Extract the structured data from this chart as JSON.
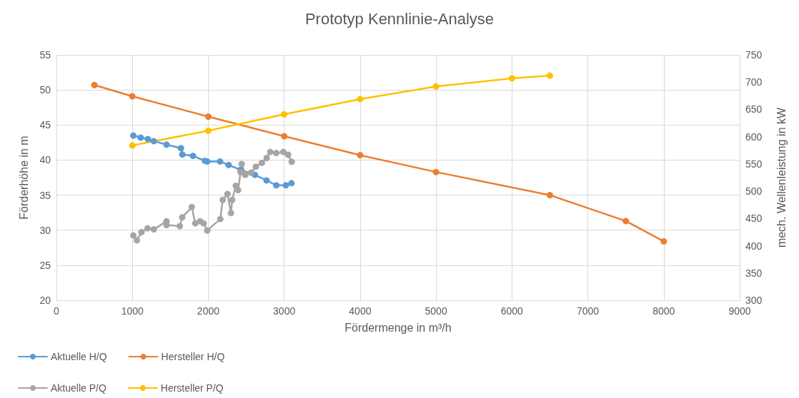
{
  "chart_data": {
    "type": "line",
    "title": "Prototyp Kennlinie-Analyse",
    "xlabel": "Fördermenge in m³/h",
    "ylabel": "Förderhöhe in m",
    "y2label": "mech. Wellenleistung in kW",
    "xlim": [
      0,
      9000
    ],
    "xticks": [
      0,
      1000,
      2000,
      3000,
      4000,
      5000,
      6000,
      7000,
      8000,
      9000
    ],
    "ylim": [
      20,
      55
    ],
    "yticks": [
      20,
      25,
      30,
      35,
      40,
      45,
      50,
      55
    ],
    "y2lim": [
      300,
      750
    ],
    "y2ticks": [
      300,
      350,
      400,
      450,
      500,
      550,
      600,
      650,
      700,
      750
    ],
    "grid": true,
    "legend": "bottom left",
    "marker": "circle",
    "line_style": "solid",
    "series": [
      {
        "name": "Aktuelle H/Q",
        "color": "#5b9bd5",
        "x": [
          1013,
          1110,
          1204,
          1282,
          1450,
          1640,
          1658,
          1798,
          1955,
          1986,
          2155,
          2268,
          2425,
          2614,
          2767,
          2896,
          3021,
          3096
        ],
        "values": [
          43.5,
          43.2,
          43.0,
          42.7,
          42.2,
          41.7,
          40.8,
          40.6,
          39.9,
          39.8,
          39.8,
          39.3,
          38.6,
          37.9,
          37.1,
          36.4,
          36.4,
          36.7
        ]
      },
      {
        "name": "Hersteller H/Q",
        "color": "#ed7d31",
        "x": [
          500,
          1000,
          2000,
          3000,
          4000,
          5000,
          6500,
          7500,
          8000
        ],
        "values": [
          50.7,
          49.1,
          46.2,
          43.4,
          40.7,
          38.3,
          35.0,
          31.3,
          28.4
        ]
      },
      {
        "name": "Aktuelle P/Q",
        "color": "#a5a5a5",
        "axis": "y2",
        "x": [
          1013,
          1060,
          1120,
          1200,
          1282,
          1450,
          1450,
          1625,
          1656,
          1782,
          1829,
          1892,
          1939,
          1986,
          2158,
          2190,
          2252,
          2299,
          2315,
          2362,
          2393,
          2425,
          2440,
          2487,
          2565,
          2627,
          2706,
          2769,
          2816,
          2894,
          2989,
          3051,
          3099
        ],
        "values": [
          419,
          410,
          425,
          432,
          430,
          445,
          438,
          436,
          452,
          471,
          441,
          445,
          441,
          428,
          449,
          484,
          495,
          460,
          484,
          510,
          502,
          535,
          550,
          530,
          534,
          545,
          552,
          561,
          572,
          570,
          572,
          567,
          554
        ]
      },
      {
        "name": "Hersteller P/Q",
        "color": "#ffc000",
        "axis": "y2",
        "x": [
          1000,
          2000,
          3000,
          4000,
          5000,
          6000,
          6500
        ],
        "values": [
          584,
          611,
          641,
          669,
          692,
          707,
          712
        ]
      }
    ]
  }
}
